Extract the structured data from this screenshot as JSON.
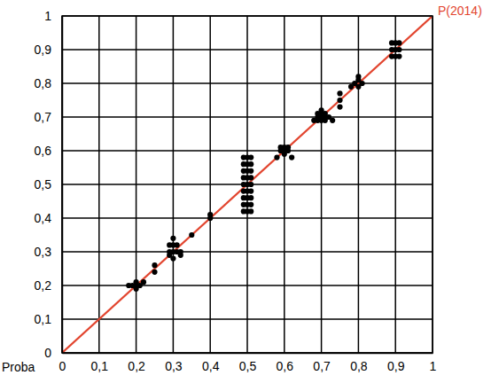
{
  "chart_data": {
    "type": "scatter",
    "xlabel": "Proba",
    "xlim": [
      0,
      1
    ],
    "ylim": [
      0,
      1
    ],
    "xticks": [
      0,
      {
        "value": 0.1,
        "label": "0,1"
      },
      {
        "value": 0.2,
        "label": "0,2"
      },
      {
        "value": 0.3,
        "label": "0,3"
      },
      {
        "value": 0.4,
        "label": "0,4"
      },
      {
        "value": 0.5,
        "label": "0,5"
      },
      {
        "value": 0.6,
        "label": "0,6"
      },
      {
        "value": 0.7,
        "label": "0,7"
      },
      {
        "value": 0.8,
        "label": "0,8"
      },
      {
        "value": 0.9,
        "label": "0,9"
      },
      1
    ],
    "yticks": [
      0,
      {
        "value": 0.1,
        "label": "0,1"
      },
      {
        "value": 0.2,
        "label": "0,2"
      },
      {
        "value": 0.3,
        "label": "0,3"
      },
      {
        "value": 0.4,
        "label": "0,4"
      },
      {
        "value": 0.5,
        "label": "0,5"
      },
      {
        "value": 0.6,
        "label": "0,6"
      },
      {
        "value": 0.7,
        "label": "0,7"
      },
      {
        "value": 0.8,
        "label": "0,8"
      },
      {
        "value": 0.9,
        "label": "0,9"
      },
      1
    ],
    "grid": true,
    "series": [
      {
        "name": "P(2014)",
        "type": "line",
        "color": "#e2452f",
        "line_style": "solid",
        "x": [
          0,
          1
        ],
        "values": [
          0,
          1
        ]
      },
      {
        "type": "scatter",
        "color": "#000000",
        "marker": "circle",
        "x": [
          0.19,
          0.2,
          0.21,
          0.2,
          0.2,
          0.22,
          0.18,
          0.25,
          0.25,
          0.29,
          0.3,
          0.31,
          0.32,
          0.29,
          0.3,
          0.31,
          0.3,
          0.29,
          0.3,
          0.32,
          0.35,
          0.4,
          0.4,
          0.49,
          0.5,
          0.51,
          0.49,
          0.5,
          0.51,
          0.49,
          0.5,
          0.51,
          0.49,
          0.5,
          0.51,
          0.49,
          0.5,
          0.51,
          0.49,
          0.5,
          0.51,
          0.49,
          0.5,
          0.51,
          0.49,
          0.5,
          0.51,
          0.49,
          0.5,
          0.51,
          0.59,
          0.6,
          0.61,
          0.59,
          0.6,
          0.61,
          0.6,
          0.58,
          0.62,
          0.69,
          0.7,
          0.71,
          0.72,
          0.69,
          0.7,
          0.71,
          0.68,
          0.69,
          0.7,
          0.71,
          0.73,
          0.7,
          0.75,
          0.75,
          0.75,
          0.79,
          0.8,
          0.8,
          0.81,
          0.8,
          0.78,
          0.89,
          0.9,
          0.91,
          0.89,
          0.9,
          0.91,
          0.89,
          0.9,
          0.91
        ],
        "values": [
          0.2,
          0.2,
          0.2,
          0.21,
          0.19,
          0.21,
          0.2,
          0.24,
          0.26,
          0.3,
          0.3,
          0.3,
          0.3,
          0.32,
          0.32,
          0.32,
          0.34,
          0.29,
          0.28,
          0.29,
          0.35,
          0.4,
          0.41,
          0.42,
          0.42,
          0.42,
          0.44,
          0.44,
          0.44,
          0.46,
          0.46,
          0.46,
          0.48,
          0.48,
          0.48,
          0.5,
          0.5,
          0.5,
          0.52,
          0.52,
          0.52,
          0.54,
          0.54,
          0.54,
          0.56,
          0.56,
          0.56,
          0.58,
          0.58,
          0.58,
          0.6,
          0.6,
          0.6,
          0.61,
          0.61,
          0.61,
          0.59,
          0.58,
          0.58,
          0.7,
          0.7,
          0.7,
          0.7,
          0.71,
          0.71,
          0.71,
          0.69,
          0.69,
          0.69,
          0.69,
          0.69,
          0.72,
          0.73,
          0.75,
          0.77,
          0.8,
          0.81,
          0.79,
          0.8,
          0.82,
          0.79,
          0.9,
          0.9,
          0.9,
          0.92,
          0.92,
          0.92,
          0.88,
          0.88,
          0.88
        ]
      }
    ]
  }
}
